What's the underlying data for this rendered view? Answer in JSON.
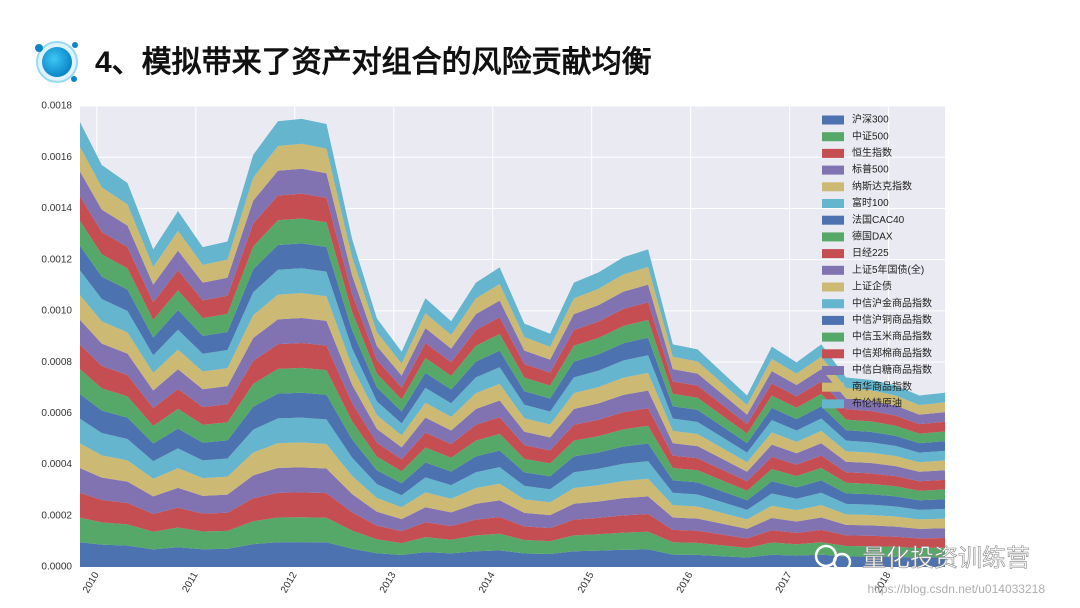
{
  "header": {
    "title": "4、模拟带来了资产对组合的风险贡献均衡"
  },
  "watermark": {
    "brand": "量化投资训练营",
    "url": "https://blog.csdn.net/u014033218"
  },
  "chart_data": {
    "type": "stacked_area",
    "x": [
      2009.83,
      2010.05,
      2010.31,
      2010.57,
      2010.82,
      2011.07,
      2011.32,
      2011.58,
      2011.83,
      2012.07,
      2012.32,
      2012.58,
      2012.83,
      2013.08,
      2013.32,
      2013.58,
      2013.83,
      2014.07,
      2014.32,
      2014.58,
      2014.82,
      2015.07,
      2015.32,
      2015.57,
      2015.82,
      2016.07,
      2016.32,
      2016.57,
      2016.82,
      2017.07,
      2017.32,
      2017.57,
      2017.82,
      2018.07,
      2018.31,
      2018.57
    ],
    "xlim": [
      2009.83,
      2018.57
    ],
    "xticks": [
      2010,
      2011,
      2012,
      2013,
      2014,
      2015,
      2016,
      2017,
      2018
    ],
    "ylim": [
      0,
      0.0018
    ],
    "yticks": [
      {
        "value": 0,
        "label": "0.0000"
      },
      {
        "value": 0.0002,
        "label": "0.0002"
      },
      {
        "value": 0.0004,
        "label": "0.0004"
      },
      {
        "value": 0.0006,
        "label": "0.0006"
      },
      {
        "value": 0.0008,
        "label": "0.0008"
      },
      {
        "value": 0.001,
        "label": "0.0010"
      },
      {
        "value": 0.0012,
        "label": "0.0012"
      },
      {
        "value": 0.0014,
        "label": "0.0014"
      },
      {
        "value": 0.0016,
        "label": "0.0016"
      },
      {
        "value": 0.0018,
        "label": "0.0018"
      }
    ],
    "grid": true,
    "legend": "upper right",
    "series": [
      {
        "name": "沪深300",
        "color": "#4c72b0",
        "values": [
          9.65e-05,
          8.72e-05,
          8.33e-05,
          6.89e-05,
          7.72e-05,
          6.94e-05,
          7.06e-05,
          8.94e-05,
          9.67e-05,
          9.72e-05,
          9.61e-05,
          7.11e-05,
          5.39e-05,
          4.67e-05,
          5.83e-05,
          5.33e-05,
          6.17e-05,
          6.5e-05,
          5.28e-05,
          5.06e-05,
          6.17e-05,
          6.39e-05,
          6.72e-05,
          6.89e-05,
          4.83e-05,
          4.72e-05,
          4.22e-05,
          3.72e-05,
          4.78e-05,
          4.44e-05,
          4.83e-05,
          4.11e-05,
          4.06e-05,
          3.94e-05,
          3.72e-05,
          3.78e-05
        ]
      },
      {
        "name": "中证500",
        "color": "#55a868",
        "values": [
          9.65e-05,
          8.72e-05,
          8.33e-05,
          6.89e-05,
          7.72e-05,
          6.94e-05,
          7.06e-05,
          8.94e-05,
          9.67e-05,
          9.72e-05,
          9.61e-05,
          7.11e-05,
          5.39e-05,
          4.67e-05,
          5.83e-05,
          5.33e-05,
          6.17e-05,
          6.5e-05,
          5.28e-05,
          5.06e-05,
          6.17e-05,
          6.39e-05,
          6.72e-05,
          6.89e-05,
          4.83e-05,
          4.72e-05,
          4.22e-05,
          3.72e-05,
          4.78e-05,
          4.44e-05,
          4.83e-05,
          4.11e-05,
          4.06e-05,
          3.94e-05,
          3.72e-05,
          3.78e-05
        ]
      },
      {
        "name": "恒生指数",
        "color": "#c44e52",
        "values": [
          9.65e-05,
          8.72e-05,
          8.33e-05,
          6.89e-05,
          7.72e-05,
          6.94e-05,
          7.06e-05,
          8.94e-05,
          9.67e-05,
          9.72e-05,
          9.61e-05,
          7.11e-05,
          5.39e-05,
          4.67e-05,
          5.83e-05,
          5.33e-05,
          6.17e-05,
          6.5e-05,
          5.28e-05,
          5.06e-05,
          6.17e-05,
          6.39e-05,
          6.72e-05,
          6.89e-05,
          4.83e-05,
          4.72e-05,
          4.22e-05,
          3.72e-05,
          4.78e-05,
          4.44e-05,
          4.83e-05,
          4.11e-05,
          4.06e-05,
          3.94e-05,
          3.72e-05,
          3.78e-05
        ]
      },
      {
        "name": "标普500",
        "color": "#8172b2",
        "values": [
          9.65e-05,
          8.72e-05,
          8.33e-05,
          6.89e-05,
          7.72e-05,
          6.94e-05,
          7.06e-05,
          8.94e-05,
          9.67e-05,
          9.72e-05,
          9.61e-05,
          7.11e-05,
          5.39e-05,
          4.67e-05,
          5.83e-05,
          5.33e-05,
          6.17e-05,
          6.5e-05,
          5.28e-05,
          5.06e-05,
          6.17e-05,
          6.39e-05,
          6.72e-05,
          6.89e-05,
          4.83e-05,
          4.72e-05,
          4.22e-05,
          3.72e-05,
          4.78e-05,
          4.44e-05,
          4.83e-05,
          4.11e-05,
          4.06e-05,
          3.94e-05,
          3.72e-05,
          3.78e-05
        ]
      },
      {
        "name": "纳斯达克指数",
        "color": "#ccb974",
        "values": [
          9.65e-05,
          8.72e-05,
          8.33e-05,
          6.89e-05,
          7.72e-05,
          6.94e-05,
          7.06e-05,
          8.94e-05,
          9.67e-05,
          9.72e-05,
          9.61e-05,
          7.11e-05,
          5.39e-05,
          4.67e-05,
          5.83e-05,
          5.33e-05,
          6.17e-05,
          6.5e-05,
          5.28e-05,
          5.06e-05,
          6.17e-05,
          6.39e-05,
          6.72e-05,
          6.89e-05,
          4.83e-05,
          4.72e-05,
          4.22e-05,
          3.72e-05,
          4.78e-05,
          4.44e-05,
          4.83e-05,
          4.11e-05,
          4.06e-05,
          3.94e-05,
          3.72e-05,
          3.78e-05
        ]
      },
      {
        "name": "富时100",
        "color": "#64b5cd",
        "values": [
          9.65e-05,
          8.72e-05,
          8.33e-05,
          6.89e-05,
          7.72e-05,
          6.94e-05,
          7.06e-05,
          8.94e-05,
          9.67e-05,
          9.72e-05,
          9.61e-05,
          7.11e-05,
          5.39e-05,
          4.67e-05,
          5.83e-05,
          5.33e-05,
          6.17e-05,
          6.5e-05,
          5.28e-05,
          5.06e-05,
          6.17e-05,
          6.39e-05,
          6.72e-05,
          6.89e-05,
          4.83e-05,
          4.72e-05,
          4.22e-05,
          3.72e-05,
          4.78e-05,
          4.44e-05,
          4.83e-05,
          4.11e-05,
          4.06e-05,
          3.94e-05,
          3.72e-05,
          3.78e-05
        ]
      },
      {
        "name": "法国CAC40",
        "color": "#4c72b0",
        "values": [
          9.65e-05,
          8.72e-05,
          8.33e-05,
          6.89e-05,
          7.72e-05,
          6.94e-05,
          7.06e-05,
          8.94e-05,
          9.67e-05,
          9.72e-05,
          9.61e-05,
          7.11e-05,
          5.39e-05,
          4.67e-05,
          5.83e-05,
          5.33e-05,
          6.17e-05,
          6.5e-05,
          5.28e-05,
          5.06e-05,
          6.17e-05,
          6.39e-05,
          6.72e-05,
          6.89e-05,
          4.83e-05,
          4.72e-05,
          4.22e-05,
          3.72e-05,
          4.78e-05,
          4.44e-05,
          4.83e-05,
          4.11e-05,
          4.06e-05,
          3.94e-05,
          3.72e-05,
          3.78e-05
        ]
      },
      {
        "name": "德国DAX",
        "color": "#55a868",
        "values": [
          9.65e-05,
          8.72e-05,
          8.33e-05,
          6.89e-05,
          7.72e-05,
          6.94e-05,
          7.06e-05,
          8.94e-05,
          9.67e-05,
          9.72e-05,
          9.61e-05,
          7.11e-05,
          5.39e-05,
          4.67e-05,
          5.83e-05,
          5.33e-05,
          6.17e-05,
          6.5e-05,
          5.28e-05,
          5.06e-05,
          6.17e-05,
          6.39e-05,
          6.72e-05,
          6.89e-05,
          4.83e-05,
          4.72e-05,
          4.22e-05,
          3.72e-05,
          4.78e-05,
          4.44e-05,
          4.83e-05,
          4.11e-05,
          4.06e-05,
          3.94e-05,
          3.72e-05,
          3.78e-05
        ]
      },
      {
        "name": "日经225",
        "color": "#c44e52",
        "values": [
          9.65e-05,
          8.72e-05,
          8.33e-05,
          6.89e-05,
          7.72e-05,
          6.94e-05,
          7.06e-05,
          8.94e-05,
          9.67e-05,
          9.72e-05,
          9.61e-05,
          7.11e-05,
          5.39e-05,
          4.67e-05,
          5.83e-05,
          5.33e-05,
          6.17e-05,
          6.5e-05,
          5.28e-05,
          5.06e-05,
          6.17e-05,
          6.39e-05,
          6.72e-05,
          6.89e-05,
          4.83e-05,
          4.72e-05,
          4.22e-05,
          3.72e-05,
          4.78e-05,
          4.44e-05,
          4.83e-05,
          4.11e-05,
          4.06e-05,
          3.94e-05,
          3.72e-05,
          3.78e-05
        ]
      },
      {
        "name": "上证5年国债(全)",
        "color": "#8172b2",
        "values": [
          9.65e-05,
          8.72e-05,
          8.33e-05,
          6.89e-05,
          7.72e-05,
          6.94e-05,
          7.06e-05,
          8.94e-05,
          9.67e-05,
          9.72e-05,
          9.61e-05,
          7.11e-05,
          5.39e-05,
          4.67e-05,
          5.83e-05,
          5.33e-05,
          6.17e-05,
          6.5e-05,
          5.28e-05,
          5.06e-05,
          6.17e-05,
          6.39e-05,
          6.72e-05,
          6.89e-05,
          4.83e-05,
          4.72e-05,
          4.22e-05,
          3.72e-05,
          4.78e-05,
          4.44e-05,
          4.83e-05,
          4.11e-05,
          4.06e-05,
          3.94e-05,
          3.72e-05,
          3.78e-05
        ]
      },
      {
        "name": "上证企债",
        "color": "#ccb974",
        "values": [
          9.65e-05,
          8.72e-05,
          8.33e-05,
          6.89e-05,
          7.72e-05,
          6.94e-05,
          7.06e-05,
          8.94e-05,
          9.67e-05,
          9.72e-05,
          9.61e-05,
          7.11e-05,
          5.39e-05,
          4.67e-05,
          5.83e-05,
          5.33e-05,
          6.17e-05,
          6.5e-05,
          5.28e-05,
          5.06e-05,
          6.17e-05,
          6.39e-05,
          6.72e-05,
          6.89e-05,
          4.83e-05,
          4.72e-05,
          4.22e-05,
          3.72e-05,
          4.78e-05,
          4.44e-05,
          4.83e-05,
          4.11e-05,
          4.06e-05,
          3.94e-05,
          3.72e-05,
          3.78e-05
        ]
      },
      {
        "name": "中信沪金商品指数",
        "color": "#64b5cd",
        "values": [
          9.65e-05,
          8.72e-05,
          8.33e-05,
          6.89e-05,
          7.72e-05,
          6.94e-05,
          7.06e-05,
          8.94e-05,
          9.67e-05,
          9.72e-05,
          9.61e-05,
          7.11e-05,
          5.39e-05,
          4.67e-05,
          5.83e-05,
          5.33e-05,
          6.17e-05,
          6.5e-05,
          5.28e-05,
          5.06e-05,
          6.17e-05,
          6.39e-05,
          6.72e-05,
          6.89e-05,
          4.83e-05,
          4.72e-05,
          4.22e-05,
          3.72e-05,
          4.78e-05,
          4.44e-05,
          4.83e-05,
          4.11e-05,
          4.06e-05,
          3.94e-05,
          3.72e-05,
          3.78e-05
        ]
      },
      {
        "name": "中信沪铜商品指数",
        "color": "#4c72b0",
        "values": [
          9.65e-05,
          8.72e-05,
          8.33e-05,
          6.89e-05,
          7.72e-05,
          6.94e-05,
          7.06e-05,
          8.94e-05,
          9.67e-05,
          9.72e-05,
          9.61e-05,
          7.11e-05,
          5.39e-05,
          4.67e-05,
          5.83e-05,
          5.33e-05,
          6.17e-05,
          6.5e-05,
          5.28e-05,
          5.06e-05,
          6.17e-05,
          6.39e-05,
          6.72e-05,
          6.89e-05,
          4.83e-05,
          4.72e-05,
          4.22e-05,
          3.72e-05,
          4.78e-05,
          4.44e-05,
          4.83e-05,
          4.11e-05,
          4.06e-05,
          3.94e-05,
          3.72e-05,
          3.78e-05
        ]
      },
      {
        "name": "中信玉米商品指数",
        "color": "#55a868",
        "values": [
          9.65e-05,
          8.72e-05,
          8.33e-05,
          6.89e-05,
          7.72e-05,
          6.94e-05,
          7.06e-05,
          8.94e-05,
          9.67e-05,
          9.72e-05,
          9.61e-05,
          7.11e-05,
          5.39e-05,
          4.67e-05,
          5.83e-05,
          5.33e-05,
          6.17e-05,
          6.5e-05,
          5.28e-05,
          5.06e-05,
          6.17e-05,
          6.39e-05,
          6.72e-05,
          6.89e-05,
          4.83e-05,
          4.72e-05,
          4.22e-05,
          3.72e-05,
          4.78e-05,
          4.44e-05,
          4.83e-05,
          4.11e-05,
          4.06e-05,
          3.94e-05,
          3.72e-05,
          3.78e-05
        ]
      },
      {
        "name": "中信郑棉商品指数",
        "color": "#c44e52",
        "values": [
          9.65e-05,
          8.72e-05,
          8.33e-05,
          6.89e-05,
          7.72e-05,
          6.94e-05,
          7.06e-05,
          8.94e-05,
          9.67e-05,
          9.72e-05,
          9.61e-05,
          7.11e-05,
          5.39e-05,
          4.67e-05,
          5.83e-05,
          5.33e-05,
          6.17e-05,
          6.5e-05,
          5.28e-05,
          5.06e-05,
          6.17e-05,
          6.39e-05,
          6.72e-05,
          6.89e-05,
          4.83e-05,
          4.72e-05,
          4.22e-05,
          3.72e-05,
          4.78e-05,
          4.44e-05,
          4.83e-05,
          4.11e-05,
          4.06e-05,
          3.94e-05,
          3.72e-05,
          3.78e-05
        ]
      },
      {
        "name": "中信白糖商品指数",
        "color": "#8172b2",
        "values": [
          9.65e-05,
          8.72e-05,
          8.33e-05,
          6.89e-05,
          7.72e-05,
          6.94e-05,
          7.06e-05,
          8.94e-05,
          9.67e-05,
          9.72e-05,
          9.61e-05,
          7.11e-05,
          5.39e-05,
          4.67e-05,
          5.83e-05,
          5.33e-05,
          6.17e-05,
          6.5e-05,
          5.28e-05,
          5.06e-05,
          6.17e-05,
          6.39e-05,
          6.72e-05,
          6.89e-05,
          4.83e-05,
          4.72e-05,
          4.22e-05,
          3.72e-05,
          4.78e-05,
          4.44e-05,
          4.83e-05,
          4.11e-05,
          4.06e-05,
          3.94e-05,
          3.72e-05,
          3.78e-05
        ]
      },
      {
        "name": "南华商品指数",
        "color": "#ccb974",
        "values": [
          9.65e-05,
          8.72e-05,
          8.33e-05,
          6.89e-05,
          7.72e-05,
          6.94e-05,
          7.06e-05,
          8.94e-05,
          9.67e-05,
          9.72e-05,
          9.61e-05,
          7.11e-05,
          5.39e-05,
          4.67e-05,
          5.83e-05,
          5.33e-05,
          6.17e-05,
          6.5e-05,
          5.28e-05,
          5.06e-05,
          6.17e-05,
          6.39e-05,
          6.72e-05,
          6.89e-05,
          4.83e-05,
          4.72e-05,
          4.22e-05,
          3.72e-05,
          4.78e-05,
          4.44e-05,
          4.83e-05,
          4.11e-05,
          4.06e-05,
          3.94e-05,
          3.72e-05,
          3.78e-05
        ]
      },
      {
        "name": "布伦特原油",
        "color": "#64b5cd",
        "values": [
          9.65e-05,
          8.72e-05,
          8.33e-05,
          6.89e-05,
          7.72e-05,
          6.94e-05,
          7.06e-05,
          8.94e-05,
          9.67e-05,
          9.72e-05,
          9.61e-05,
          7.11e-05,
          5.39e-05,
          4.67e-05,
          5.83e-05,
          5.33e-05,
          6.17e-05,
          6.5e-05,
          5.28e-05,
          5.06e-05,
          6.17e-05,
          6.39e-05,
          6.72e-05,
          6.89e-05,
          4.83e-05,
          4.72e-05,
          4.22e-05,
          3.72e-05,
          4.78e-05,
          4.44e-05,
          4.83e-05,
          4.11e-05,
          4.06e-05,
          3.94e-05,
          3.72e-05,
          3.78e-05
        ]
      }
    ]
  }
}
